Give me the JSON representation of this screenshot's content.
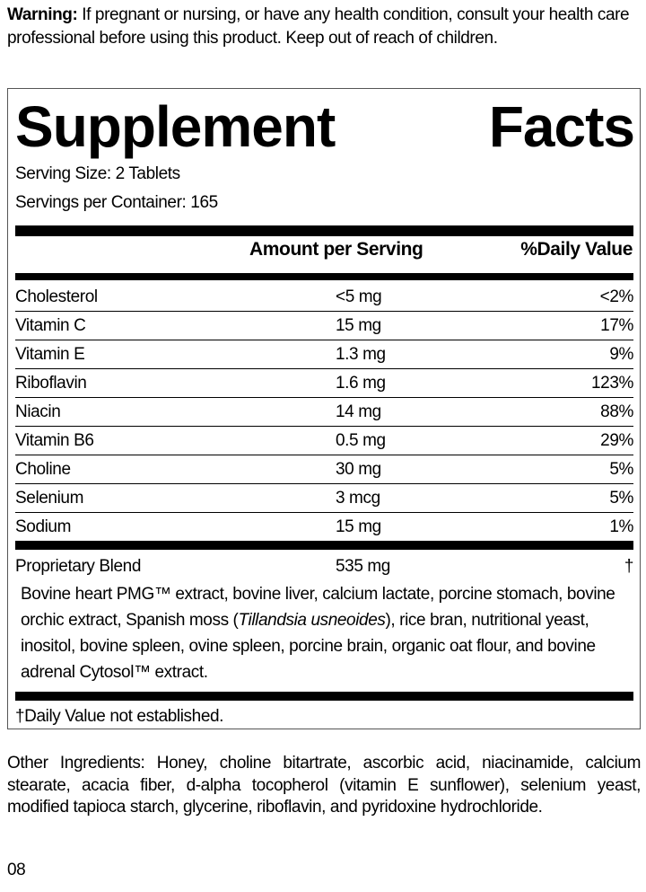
{
  "warning": {
    "label": "Warning:",
    "text": " If pregnant or nursing, or have any health condition, consult your health care professional before using this product. Keep out of reach of children."
  },
  "title": {
    "word1": "Supplement",
    "word2": "Facts"
  },
  "serving_size": "Serving Size: 2 Tablets",
  "servings_per_container": "Servings per Container: 165",
  "headers": {
    "amount": "Amount per Serving",
    "dv": "%Daily Value"
  },
  "rows": [
    {
      "name": "Cholesterol",
      "amount": "<5 mg",
      "dv": "<2%"
    },
    {
      "name": "Vitamin C",
      "amount": "15 mg",
      "dv": "17%"
    },
    {
      "name": "Vitamin E",
      "amount": "1.3 mg",
      "dv": "9%"
    },
    {
      "name": "Riboflavin",
      "amount": "1.6 mg",
      "dv": "123%"
    },
    {
      "name": "Niacin",
      "amount": "14 mg",
      "dv": "88%"
    },
    {
      "name": "Vitamin B6",
      "amount": "0.5 mg",
      "dv": "29%"
    },
    {
      "name": "Choline",
      "amount": "30 mg",
      "dv": "5%"
    },
    {
      "name": "Selenium",
      "amount": "3 mcg",
      "dv": "5%"
    },
    {
      "name": "Sodium",
      "amount": "15 mg",
      "dv": "1%"
    }
  ],
  "blend": {
    "name": "Proprietary Blend",
    "amount": "535 mg",
    "dv": "†",
    "ingredients_a": "Bovine heart PMG™ extract, bovine liver, calcium lactate, porcine stomach, bovine orchic extract, Spanish moss (",
    "ingredients_italic": "Tillandsia usneoides",
    "ingredients_b": "), rice bran, nutritional yeast, inositol, bovine spleen, ovine spleen, porcine brain, organic oat flour, and bovine adrenal Cytosol™ extract."
  },
  "footnote": "†Daily Value not established.",
  "other_ingredients": "Other Ingredients: Honey, choline bitartrate, ascorbic acid, niacinamide, calcium stearate, acacia fiber, d-alpha tocopherol (vitamin E sunflower), selenium yeast, modified tapioca starch, glycerine, riboflavin, and pyridoxine hydrochloride.",
  "code": "08"
}
